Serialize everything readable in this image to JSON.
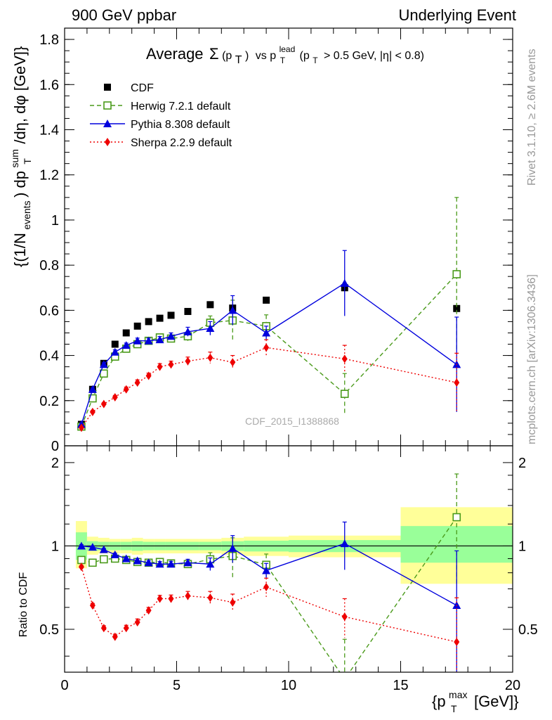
{
  "header": {
    "left": "900 GeV ppbar",
    "right": "Underlying Event"
  },
  "side_labels": {
    "rivet": "Rivet 3.1.10, ≥ 2.6M events",
    "mcplots": "mcplots.cern.ch [arXiv:1306.3436]"
  },
  "watermark": "CDF_2015_I1388868",
  "chart_data": [
    {
      "type": "scatter",
      "title_parts": {
        "prefix": "Average",
        "sigma": "Σ",
        "pt": "(p",
        "pt_sub": "T",
        "pt_close": ")",
        "vs": "vs p",
        "lead_sub": "T",
        "lead_sup": "lead",
        "cut1": "(p",
        "cut1_sub": "T",
        "cut2": "> 0.5 GeV, |η| < 0.8)"
      },
      "ylabel_parts": {
        "a": "{(1/N",
        "a_sub": "events",
        "b": ") dp",
        "b_sup": "sum",
        "b_sub": "T",
        "c": "/dη, dφ [GeV]}"
      },
      "xlim": [
        0,
        20
      ],
      "ylim": [
        0,
        1.85
      ],
      "yticks": [
        "0",
        "0.2",
        "0.4",
        "0.6",
        "0.8",
        "1",
        "1.2",
        "1.4",
        "1.6",
        "1.8"
      ],
      "ytick_values": [
        0,
        0.2,
        0.4,
        0.6,
        0.8,
        1.0,
        1.2,
        1.4,
        1.6,
        1.8
      ],
      "legend_position": "top-left",
      "series": [
        {
          "name": "CDF",
          "color": "#000000",
          "marker": "square-filled",
          "line": "none",
          "x": [
            0.75,
            1.25,
            1.75,
            2.25,
            2.75,
            3.25,
            3.75,
            4.25,
            4.75,
            5.5,
            6.5,
            7.5,
            9.0,
            12.5,
            17.5
          ],
          "y": [
            0.095,
            0.25,
            0.365,
            0.45,
            0.5,
            0.53,
            0.55,
            0.565,
            0.578,
            0.595,
            0.625,
            0.61,
            0.645,
            0.7,
            0.608
          ],
          "err": [
            0,
            0,
            0,
            0,
            0,
            0,
            0,
            0,
            0,
            0,
            0,
            0,
            0,
            0,
            0
          ]
        },
        {
          "name": "Herwig 7.2.1 default",
          "color": "#4a9a1a",
          "marker": "square-open",
          "line": "dashed",
          "x": [
            0.75,
            1.25,
            1.75,
            2.25,
            2.75,
            3.25,
            3.75,
            4.25,
            4.75,
            5.5,
            6.5,
            7.5,
            9.0,
            12.5,
            17.5
          ],
          "y": [
            0.085,
            0.21,
            0.32,
            0.395,
            0.43,
            0.45,
            0.465,
            0.48,
            0.475,
            0.485,
            0.545,
            0.555,
            0.53,
            0.23,
            0.76
          ],
          "err": [
            0.005,
            0.008,
            0.01,
            0.01,
            0.012,
            0.012,
            0.012,
            0.015,
            0.015,
            0.02,
            0.03,
            0.09,
            0.05,
            0.09,
            0.34
          ]
        },
        {
          "name": "Pythia 8.308 default",
          "color": "#0000dd",
          "marker": "triangle-filled",
          "line": "solid",
          "x": [
            0.75,
            1.25,
            1.75,
            2.25,
            2.75,
            3.25,
            3.75,
            4.25,
            4.75,
            5.5,
            6.5,
            7.5,
            9.0,
            12.5,
            17.5
          ],
          "y": [
            0.095,
            0.25,
            0.36,
            0.415,
            0.445,
            0.465,
            0.465,
            0.47,
            0.485,
            0.505,
            0.52,
            0.6,
            0.5,
            0.72,
            0.36
          ],
          "err": [
            0.004,
            0.006,
            0.008,
            0.01,
            0.01,
            0.012,
            0.012,
            0.014,
            0.015,
            0.02,
            0.03,
            0.065,
            0.03,
            0.145,
            0.21
          ]
        },
        {
          "name": "Sherpa 2.2.9 default",
          "color": "#ee0000",
          "marker": "diamond-filled",
          "line": "dotted",
          "x": [
            0.75,
            1.25,
            1.75,
            2.25,
            2.75,
            3.25,
            3.75,
            4.25,
            4.75,
            5.5,
            6.5,
            7.5,
            9.0,
            12.5,
            17.5
          ],
          "y": [
            0.08,
            0.15,
            0.185,
            0.215,
            0.25,
            0.28,
            0.31,
            0.35,
            0.36,
            0.375,
            0.39,
            0.37,
            0.435,
            0.385,
            0.28
          ],
          "err": [
            0.004,
            0.006,
            0.006,
            0.008,
            0.01,
            0.012,
            0.012,
            0.014,
            0.015,
            0.018,
            0.025,
            0.03,
            0.035,
            0.06,
            0.13
          ]
        }
      ]
    },
    {
      "type": "scatter",
      "ylabel": "Ratio to CDF",
      "xlabel_parts": {
        "a": "{p",
        "a_sup": "max",
        "a_sub": "T",
        "b": "[GeV]}"
      },
      "xlim": [
        0,
        20
      ],
      "ylim": [
        0.35,
        2.3
      ],
      "xticks": [
        "0",
        "5",
        "10",
        "15",
        "20"
      ],
      "xtick_values": [
        0,
        5,
        10,
        15,
        20
      ],
      "yticks": [
        "0.5",
        "1",
        "2"
      ],
      "ytick_values": [
        0.5,
        1,
        2
      ],
      "reference_line": 1,
      "bands": [
        {
          "x0": 0.5,
          "x1": 1.0,
          "yellow": [
            0.83,
            1.23
          ],
          "green": [
            0.89,
            1.12
          ]
        },
        {
          "x0": 1.0,
          "x1": 1.5,
          "yellow": [
            0.93,
            1.08
          ],
          "green": [
            0.96,
            1.04
          ]
        },
        {
          "x0": 1.5,
          "x1": 2.0,
          "yellow": [
            0.94,
            1.07
          ],
          "green": [
            0.965,
            1.035
          ]
        },
        {
          "x0": 2.0,
          "x1": 2.5,
          "yellow": [
            0.94,
            1.06
          ],
          "green": [
            0.965,
            1.035
          ]
        },
        {
          "x0": 2.5,
          "x1": 3.0,
          "yellow": [
            0.94,
            1.06
          ],
          "green": [
            0.965,
            1.035
          ]
        },
        {
          "x0": 3.0,
          "x1": 3.5,
          "yellow": [
            0.93,
            1.07
          ],
          "green": [
            0.96,
            1.04
          ]
        },
        {
          "x0": 3.5,
          "x1": 4.0,
          "yellow": [
            0.94,
            1.06
          ],
          "green": [
            0.965,
            1.035
          ]
        },
        {
          "x0": 4.0,
          "x1": 4.5,
          "yellow": [
            0.94,
            1.06
          ],
          "green": [
            0.965,
            1.035
          ]
        },
        {
          "x0": 4.5,
          "x1": 5.0,
          "yellow": [
            0.94,
            1.06
          ],
          "green": [
            0.965,
            1.035
          ]
        },
        {
          "x0": 5.0,
          "x1": 6.0,
          "yellow": [
            0.94,
            1.06
          ],
          "green": [
            0.965,
            1.035
          ]
        },
        {
          "x0": 6.0,
          "x1": 7.0,
          "yellow": [
            0.94,
            1.06
          ],
          "green": [
            0.965,
            1.035
          ]
        },
        {
          "x0": 7.0,
          "x1": 8.0,
          "yellow": [
            0.93,
            1.07
          ],
          "green": [
            0.96,
            1.04
          ]
        },
        {
          "x0": 8.0,
          "x1": 10.0,
          "yellow": [
            0.92,
            1.08
          ],
          "green": [
            0.955,
            1.045
          ]
        },
        {
          "x0": 10.0,
          "x1": 15.0,
          "yellow": [
            0.91,
            1.09
          ],
          "green": [
            0.95,
            1.05
          ]
        },
        {
          "x0": 15.0,
          "x1": 20.0,
          "yellow": [
            0.73,
            1.38
          ],
          "green": [
            0.87,
            1.18
          ]
        }
      ],
      "series": [
        {
          "name": "Herwig 7.2.1 default",
          "color": "#4a9a1a",
          "marker": "square-open",
          "line": "dashed",
          "x": [
            0.75,
            1.25,
            1.75,
            2.25,
            2.75,
            3.25,
            3.75,
            4.25,
            4.75,
            5.5,
            6.5,
            7.5,
            9.0,
            12.5,
            17.5
          ],
          "y": [
            0.89,
            0.87,
            0.895,
            0.9,
            0.89,
            0.875,
            0.87,
            0.875,
            0.865,
            0.86,
            0.895,
            0.92,
            0.855,
            0.33,
            1.27
          ],
          "err": [
            0.01,
            0.01,
            0.01,
            0.012,
            0.012,
            0.015,
            0.015,
            0.018,
            0.02,
            0.025,
            0.05,
            0.15,
            0.08,
            0.13,
            0.55
          ]
        },
        {
          "name": "Pythia 8.308 default",
          "color": "#0000dd",
          "marker": "triangle-filled",
          "line": "solid",
          "x": [
            0.75,
            1.25,
            1.75,
            2.25,
            2.75,
            3.25,
            3.75,
            4.25,
            4.75,
            5.5,
            6.5,
            7.5,
            9.0,
            12.5,
            17.5
          ],
          "y": [
            1.0,
            0.99,
            0.97,
            0.93,
            0.9,
            0.885,
            0.87,
            0.86,
            0.86,
            0.87,
            0.86,
            0.98,
            0.815,
            1.02,
            0.61
          ],
          "err": [
            0.01,
            0.01,
            0.01,
            0.012,
            0.012,
            0.015,
            0.015,
            0.018,
            0.02,
            0.025,
            0.045,
            0.11,
            0.05,
            0.2,
            0.35
          ]
        },
        {
          "name": "Sherpa 2.2.9 default",
          "color": "#ee0000",
          "marker": "diamond-filled",
          "line": "dotted",
          "x": [
            0.75,
            1.25,
            1.75,
            2.25,
            2.75,
            3.25,
            3.75,
            4.25,
            4.75,
            5.5,
            6.5,
            7.5,
            9.0,
            12.5,
            17.5
          ],
          "y": [
            0.84,
            0.61,
            0.505,
            0.47,
            0.505,
            0.53,
            0.585,
            0.645,
            0.645,
            0.66,
            0.65,
            0.625,
            0.71,
            0.555,
            0.45
          ],
          "err": [
            0.01,
            0.01,
            0.01,
            0.01,
            0.012,
            0.015,
            0.015,
            0.018,
            0.02,
            0.025,
            0.035,
            0.045,
            0.055,
            0.09,
            0.2
          ]
        }
      ]
    }
  ]
}
